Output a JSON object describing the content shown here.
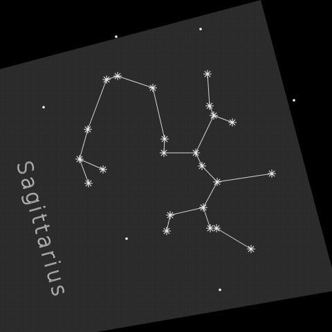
{
  "constellation": {
    "name": "Sagittarius"
  },
  "colors": {
    "background": "#000000",
    "card": "#2b2b2b",
    "card_texture": "#242424",
    "line": "#d9d9d9",
    "star": "#f2f2f2",
    "label": "#b8b8b8"
  },
  "icons": {
    "star": "asterisk-star-icon",
    "background_star": "dot-star-icon"
  }
}
